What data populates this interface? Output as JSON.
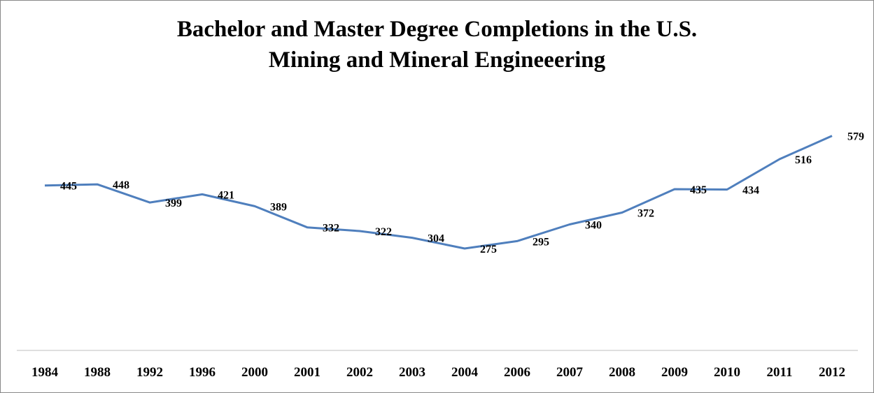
{
  "chart_data": {
    "type": "line",
    "title": [
      "Bachelor and Master Degree Completions in the U.S.",
      "Mining and Mineral Engineeering"
    ],
    "categories": [
      "1984",
      "1988",
      "1992",
      "1996",
      "2000",
      "2001",
      "2002",
      "2003",
      "2004",
      "2006",
      "2007",
      "2008",
      "2009",
      "2010",
      "2011",
      "2012"
    ],
    "series": [
      {
        "values": [
          445,
          448,
          399,
          421,
          389,
          332,
          322,
          304,
          275,
          295,
          340,
          372,
          435,
          434,
          516,
          579
        ]
      }
    ],
    "ylim": [
      0,
      600
    ],
    "grid": false,
    "legend": "none",
    "line_color": "#4F7FBD",
    "axis_color": "#bfbfbf"
  }
}
